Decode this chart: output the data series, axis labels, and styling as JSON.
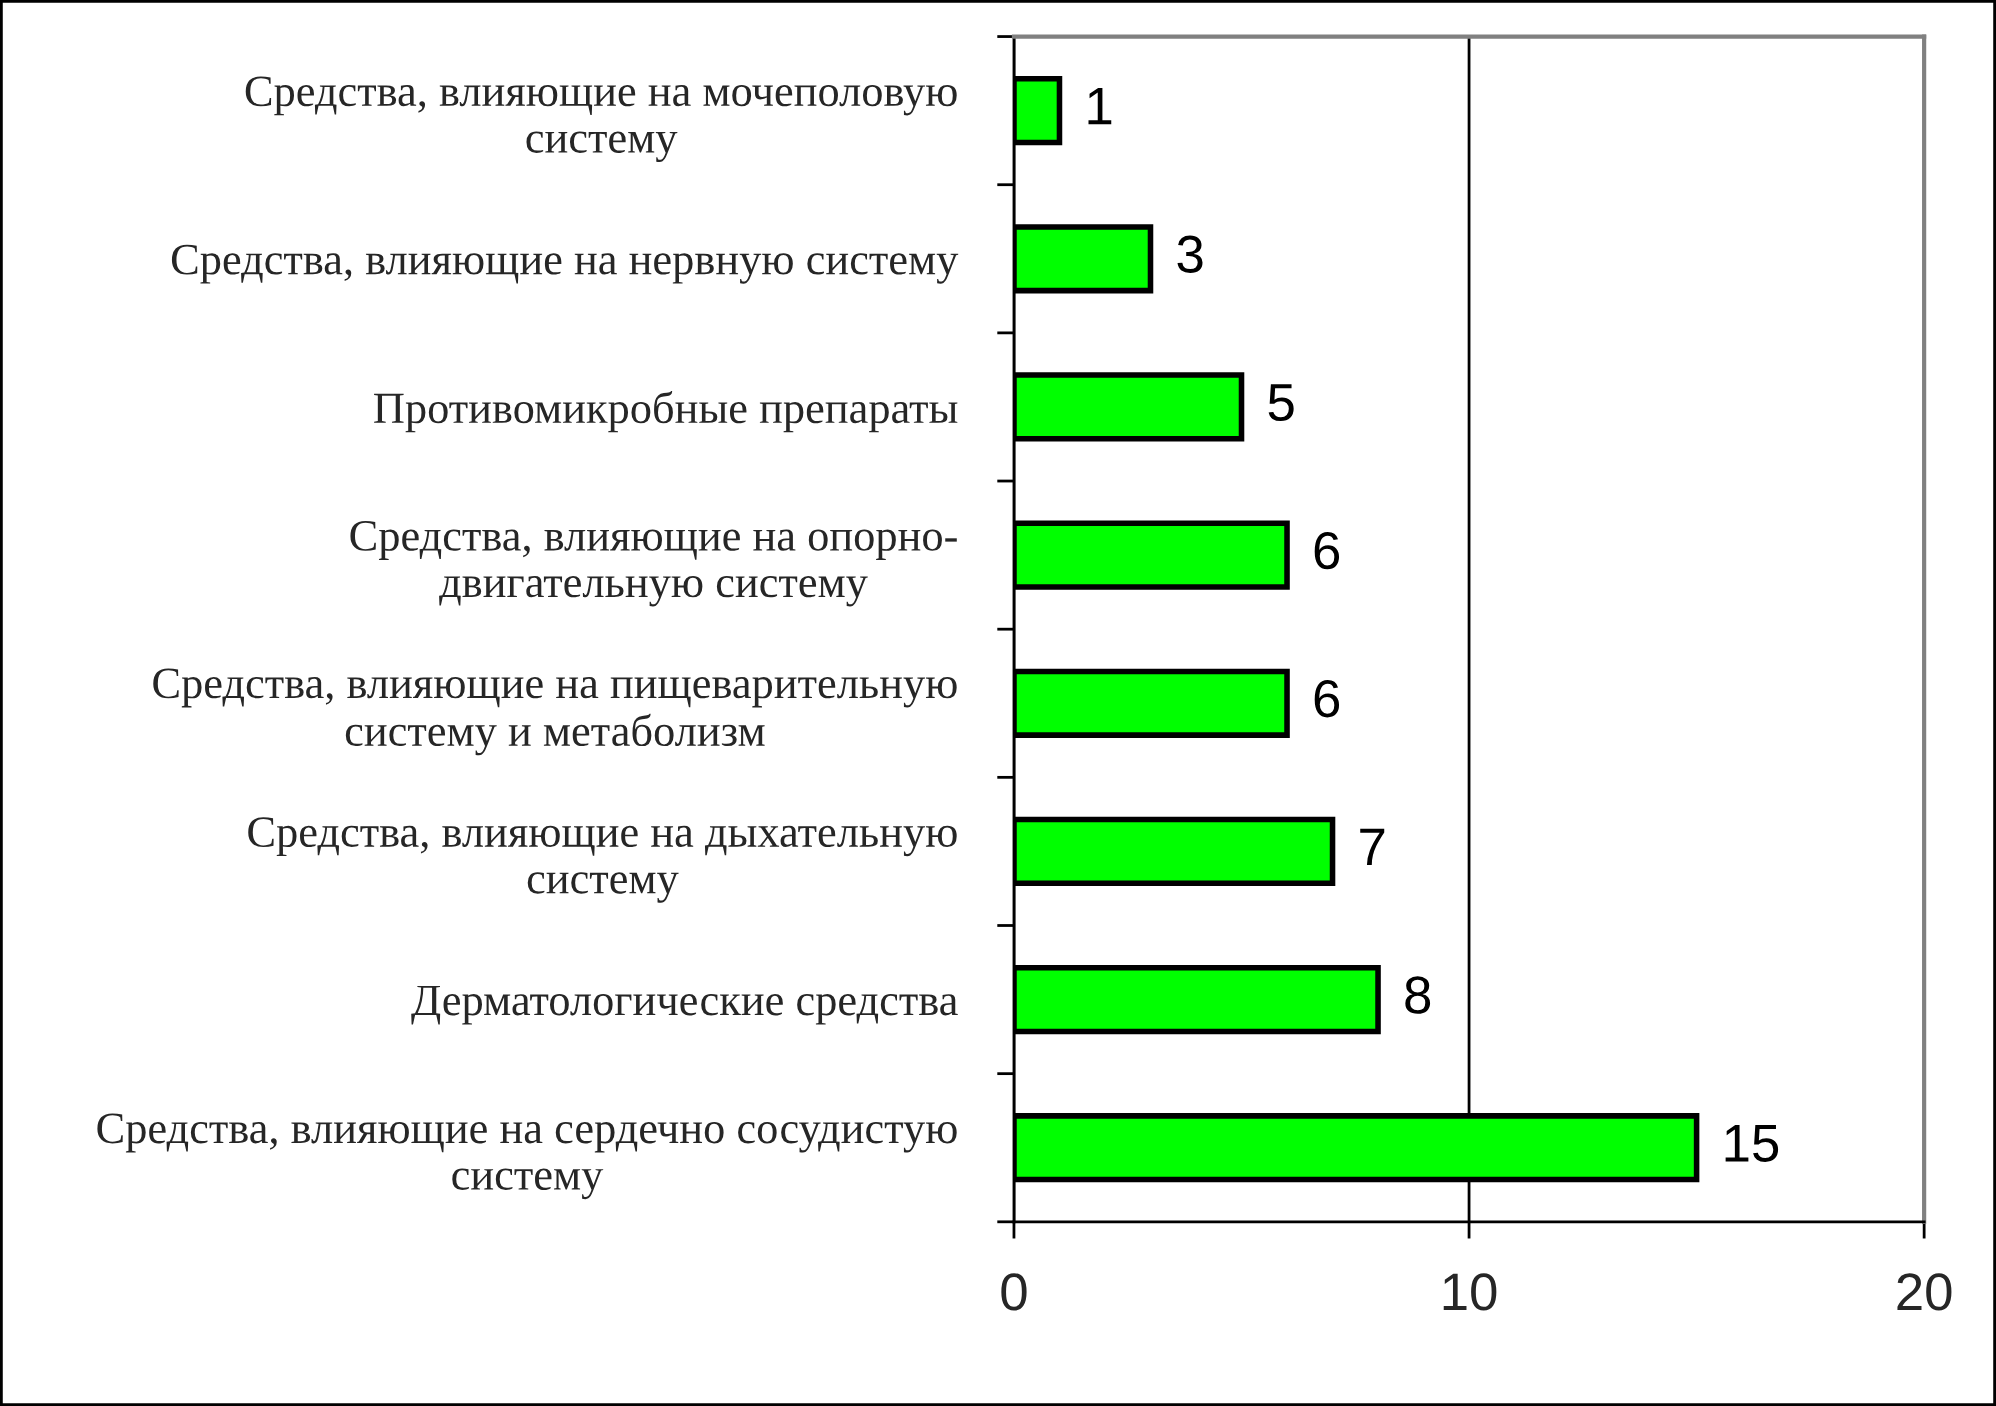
{
  "chart_data": {
    "type": "bar",
    "orientation": "horizontal",
    "categories": [
      "Средства, влияющие на мочеполовую\nсистему",
      "Средства, влияющие на нервную систему",
      "Противомикробные препараты",
      "Средства, влияющие на опорно-\nдвигательную систему",
      "Средства, влияющие на пищеварительную\nсистему и метаболизм",
      "Средства, влияющие на дыхательную\nсистему",
      "Дерматологические средства",
      "Средства, влияющие на сердечно сосудистую\nсистему"
    ],
    "values": [
      1,
      3,
      5,
      6,
      6,
      7,
      8,
      15
    ],
    "color": "#00ff00",
    "xlim": [
      0,
      20
    ],
    "xticks": [
      0,
      10,
      20
    ],
    "grid": "x",
    "data_labels": true
  }
}
